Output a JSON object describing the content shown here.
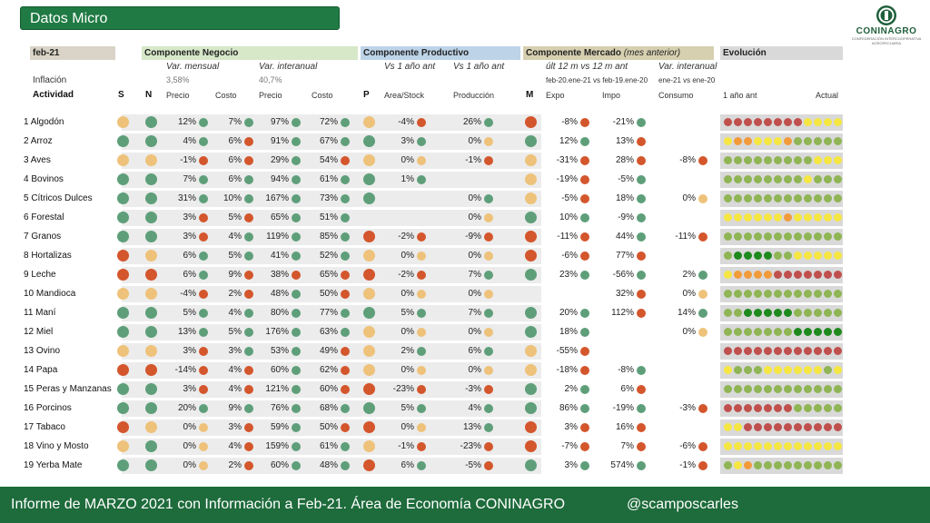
{
  "title": "Datos Micro",
  "logo": {
    "name": "CONINAGRO",
    "subtitle": "CONFEDERACIÓN INTERCOOPERATIVA AGROPECUARIA"
  },
  "header": {
    "period": "feb-21",
    "negocio": "Componente Negocio",
    "productivo": "Componente Productivo",
    "mercado": "Componente Mercado",
    "mercado_note": "(mes anterior)",
    "evolucion": "Evolución",
    "var_mensual": "Var. mensual",
    "var_interanual": "Var. interanual",
    "prod_1a": "Vs 1 año ant",
    "prod_1b": "Vs 1 año ant",
    "merc_12m": "últ 12 m vs 12 m ant",
    "merc_interanual": "Var. interanual",
    "merc_range1": "feb-20.ene-21 vs feb-19.ene-20",
    "merc_range2": "ene-21 vs ene-20",
    "inflacion_label": "Inflación",
    "inflacion_mensual": "3,58%",
    "inflacion_interanual": "40,7%",
    "col_actividad": "Actividad",
    "col_s": "S",
    "col_n": "N",
    "col_precio1": "Precio",
    "col_costo1": "Costo",
    "col_precio2": "Precio",
    "col_costo2": "Costo",
    "col_p": "P",
    "col_area": "Area/Stock",
    "col_produccion": "Producción",
    "col_m": "M",
    "col_expo": "Expo",
    "col_impo": "Impo",
    "col_consumo": "Consumo",
    "col_1a": "1 año ant",
    "col_actual": "Actual"
  },
  "colors": {
    "green": "#5aa17a",
    "red": "#d9542b",
    "yellow": "#f0c26b",
    "dkgreen": "#1e6b3b"
  },
  "rows": [
    {
      "name": "1 Algodón",
      "s": "y",
      "n": "g",
      "pm": "12%",
      "pmc": "g",
      "cm": "7%",
      "cmc": "g",
      "pi": "97%",
      "pic": "g",
      "ci": "72%",
      "cic": "g",
      "p": "y",
      "area": "-4%",
      "areac": "r",
      "prod": "26%",
      "prodc": "g",
      "m": "r",
      "expo": "-8%",
      "expoc": "r",
      "impo": "-21%",
      "impoc": "g",
      "cons": "",
      "consc": "",
      "evo": "rrrrrrrryyyy"
    },
    {
      "name": "2 Arroz",
      "s": "g",
      "n": "g",
      "pm": "4%",
      "pmc": "g",
      "cm": "6%",
      "cmc": "r",
      "pi": "91%",
      "pic": "g",
      "ci": "67%",
      "cic": "g",
      "p": "g",
      "area": "3%",
      "areac": "g",
      "prod": "0%",
      "prodc": "y",
      "m": "g",
      "expo": "12%",
      "expoc": "g",
      "impo": "13%",
      "impoc": "r",
      "cons": "",
      "consc": "",
      "evo": "yooyyyoggggg"
    },
    {
      "name": "3 Aves",
      "s": "y",
      "n": "y",
      "pm": "-1%",
      "pmc": "r",
      "cm": "6%",
      "cmc": "r",
      "pi": "29%",
      "pic": "g",
      "ci": "54%",
      "cic": "r",
      "p": "y",
      "area": "0%",
      "areac": "y",
      "prod": "-1%",
      "prodc": "r",
      "m": "y",
      "expo": "-31%",
      "expoc": "r",
      "impo": "28%",
      "impoc": "r",
      "cons": "-8%",
      "consc": "r",
      "evo": "gggggggggyyy"
    },
    {
      "name": "4 Bovinos",
      "s": "g",
      "n": "g",
      "pm": "7%",
      "pmc": "g",
      "cm": "6%",
      "cmc": "g",
      "pi": "94%",
      "pic": "g",
      "ci": "61%",
      "cic": "g",
      "p": "g",
      "area": "1%",
      "areac": "g",
      "prod": "",
      "prodc": "",
      "m": "y",
      "expo": "-19%",
      "expoc": "r",
      "impo": "-5%",
      "impoc": "g",
      "cons": "",
      "consc": "",
      "evo": "ggggggggyggg"
    },
    {
      "name": "5 Cítricos Dulces",
      "s": "g",
      "n": "g",
      "pm": "31%",
      "pmc": "g",
      "cm": "10%",
      "cmc": "g",
      "pi": "167%",
      "pic": "g",
      "ci": "73%",
      "cic": "g",
      "p": "g",
      "area": "",
      "areac": "",
      "prod": "0%",
      "prodc": "g",
      "m": "y",
      "expo": "-5%",
      "expoc": "r",
      "impo": "18%",
      "impoc": "g",
      "cons": "0%",
      "consc": "y",
      "evo": "gggggggggggg"
    },
    {
      "name": "6 Forestal",
      "s": "g",
      "n": "g",
      "pm": "3%",
      "pmc": "r",
      "cm": "5%",
      "cmc": "r",
      "pi": "65%",
      "pic": "g",
      "ci": "51%",
      "cic": "g",
      "p": "",
      "area": "",
      "areac": "",
      "prod": "0%",
      "prodc": "y",
      "m": "g",
      "expo": "10%",
      "expoc": "g",
      "impo": "-9%",
      "impoc": "g",
      "cons": "",
      "consc": "",
      "evo": "yyyyyyoyyyyy"
    },
    {
      "name": "7 Granos",
      "s": "g",
      "n": "g",
      "pm": "3%",
      "pmc": "r",
      "cm": "4%",
      "cmc": "g",
      "pi": "119%",
      "pic": "g",
      "ci": "85%",
      "cic": "g",
      "p": "r",
      "area": "-2%",
      "areac": "r",
      "prod": "-9%",
      "prodc": "r",
      "m": "r",
      "expo": "-11%",
      "expoc": "r",
      "impo": "44%",
      "impoc": "g",
      "cons": "-11%",
      "consc": "r",
      "evo": "gggggggggggg"
    },
    {
      "name": "8 Hortalizas",
      "s": "r",
      "n": "y",
      "pm": "6%",
      "pmc": "g",
      "cm": "5%",
      "cmc": "g",
      "pi": "41%",
      "pic": "g",
      "ci": "52%",
      "cic": "g",
      "p": "y",
      "area": "0%",
      "areac": "y",
      "prod": "0%",
      "prodc": "y",
      "m": "r",
      "expo": "-6%",
      "expoc": "r",
      "impo": "77%",
      "impoc": "r",
      "cons": "",
      "consc": "",
      "evo": "gddddggyyyyy"
    },
    {
      "name": "9 Leche",
      "s": "r",
      "n": "r",
      "pm": "6%",
      "pmc": "g",
      "cm": "9%",
      "cmc": "r",
      "pi": "38%",
      "pic": "r",
      "ci": "65%",
      "cic": "r",
      "p": "r",
      "area": "-2%",
      "areac": "r",
      "prod": "7%",
      "prodc": "g",
      "m": "g",
      "expo": "23%",
      "expoc": "g",
      "impo": "-56%",
      "impoc": "g",
      "cons": "2%",
      "consc": "g",
      "evo": "yoooorrrrrrr"
    },
    {
      "name": "10 Mandioca",
      "s": "y",
      "n": "y",
      "pm": "-4%",
      "pmc": "r",
      "cm": "2%",
      "cmc": "r",
      "pi": "48%",
      "pic": "g",
      "ci": "50%",
      "cic": "r",
      "p": "y",
      "area": "0%",
      "areac": "y",
      "prod": "0%",
      "prodc": "y",
      "m": "",
      "expo": "",
      "expoc": "",
      "impo": "32%",
      "impoc": "r",
      "cons": "0%",
      "consc": "y",
      "evo": "gggggggggggg"
    },
    {
      "name": "11 Maní",
      "s": "g",
      "n": "g",
      "pm": "5%",
      "pmc": "g",
      "cm": "4%",
      "cmc": "g",
      "pi": "80%",
      "pic": "g",
      "ci": "77%",
      "cic": "g",
      "p": "g",
      "area": "5%",
      "areac": "g",
      "prod": "7%",
      "prodc": "g",
      "m": "g",
      "expo": "20%",
      "expoc": "g",
      "impo": "112%",
      "impoc": "r",
      "cons": "14%",
      "consc": "g",
      "evo": "ggdddddggggg"
    },
    {
      "name": "12 Miel",
      "s": "g",
      "n": "g",
      "pm": "13%",
      "pmc": "g",
      "cm": "5%",
      "cmc": "g",
      "pi": "176%",
      "pic": "g",
      "ci": "63%",
      "cic": "g",
      "p": "y",
      "area": "0%",
      "areac": "y",
      "prod": "0%",
      "prodc": "y",
      "m": "g",
      "expo": "18%",
      "expoc": "g",
      "impo": "",
      "impoc": "",
      "cons": "0%",
      "consc": "y",
      "evo": "gggggggdddddd"
    },
    {
      "name": "13 Ovino",
      "s": "y",
      "n": "y",
      "pm": "3%",
      "pmc": "r",
      "cm": "3%",
      "cmc": "g",
      "pi": "53%",
      "pic": "g",
      "ci": "49%",
      "cic": "r",
      "p": "y",
      "area": "2%",
      "areac": "g",
      "prod": "6%",
      "prodc": "g",
      "m": "y",
      "expo": "-55%",
      "expoc": "r",
      "impo": "",
      "impoc": "",
      "cons": "",
      "consc": "",
      "evo": "rrrrrrrrrrrr"
    },
    {
      "name": "14 Papa",
      "s": "r",
      "n": "r",
      "pm": "-14%",
      "pmc": "r",
      "cm": "4%",
      "cmc": "r",
      "pi": "60%",
      "pic": "g",
      "ci": "62%",
      "cic": "r",
      "p": "y",
      "area": "0%",
      "areac": "y",
      "prod": "0%",
      "prodc": "y",
      "m": "y",
      "expo": "-18%",
      "expoc": "r",
      "impo": "-8%",
      "impoc": "g",
      "cons": "",
      "consc": "",
      "evo": "ygggyyyyyygy"
    },
    {
      "name": "15 Peras y Manzanas",
      "s": "g",
      "n": "g",
      "pm": "3%",
      "pmc": "r",
      "cm": "4%",
      "cmc": "r",
      "pi": "121%",
      "pic": "g",
      "ci": "60%",
      "cic": "r",
      "p": "r",
      "area": "-23%",
      "areac": "r",
      "prod": "-3%",
      "prodc": "r",
      "m": "g",
      "expo": "2%",
      "expoc": "g",
      "impo": "6%",
      "impoc": "r",
      "cons": "",
      "consc": "",
      "evo": "gggggggggggg"
    },
    {
      "name": "16 Porcinos",
      "s": "g",
      "n": "g",
      "pm": "20%",
      "pmc": "g",
      "cm": "9%",
      "cmc": "g",
      "pi": "76%",
      "pic": "g",
      "ci": "68%",
      "cic": "g",
      "p": "g",
      "area": "5%",
      "areac": "g",
      "prod": "4%",
      "prodc": "g",
      "m": "g",
      "expo": "86%",
      "expoc": "g",
      "impo": "-19%",
      "impoc": "g",
      "cons": "-3%",
      "consc": "r",
      "evo": "rrrrrrrgggggg"
    },
    {
      "name": "17 Tabaco",
      "s": "r",
      "n": "y",
      "pm": "0%",
      "pmc": "y",
      "cm": "3%",
      "cmc": "r",
      "pi": "59%",
      "pic": "g",
      "ci": "50%",
      "cic": "r",
      "p": "r",
      "area": "0%",
      "areac": "y",
      "prod": "13%",
      "prodc": "g",
      "m": "r",
      "expo": "3%",
      "expoc": "r",
      "impo": "16%",
      "impoc": "r",
      "cons": "",
      "consc": "",
      "evo": "yyrrrrrrrrrr"
    },
    {
      "name": "18 Vino y Mosto",
      "s": "y",
      "n": "g",
      "pm": "0%",
      "pmc": "y",
      "cm": "4%",
      "cmc": "r",
      "pi": "159%",
      "pic": "g",
      "ci": "61%",
      "cic": "g",
      "p": "y",
      "area": "-1%",
      "areac": "r",
      "prod": "-23%",
      "prodc": "r",
      "m": "r",
      "expo": "-7%",
      "expoc": "r",
      "impo": "7%",
      "impoc": "r",
      "cons": "-6%",
      "consc": "r",
      "evo": "yyyyyyyyyyyy"
    },
    {
      "name": "19 Yerba Mate",
      "s": "g",
      "n": "g",
      "pm": "0%",
      "pmc": "y",
      "cm": "2%",
      "cmc": "r",
      "pi": "60%",
      "pic": "g",
      "ci": "48%",
      "cic": "g",
      "p": "r",
      "area": "6%",
      "areac": "g",
      "prod": "-5%",
      "prodc": "r",
      "m": "g",
      "expo": "3%",
      "expoc": "g",
      "impo": "574%",
      "impoc": "g",
      "cons": "-1%",
      "consc": "r",
      "evo": "gyoggggggggg"
    }
  ],
  "footer": {
    "text": "Informe de MARZO 2021 con Información a Feb-21. Área de Economía CONINAGRO",
    "handle": "@scamposcarles"
  }
}
